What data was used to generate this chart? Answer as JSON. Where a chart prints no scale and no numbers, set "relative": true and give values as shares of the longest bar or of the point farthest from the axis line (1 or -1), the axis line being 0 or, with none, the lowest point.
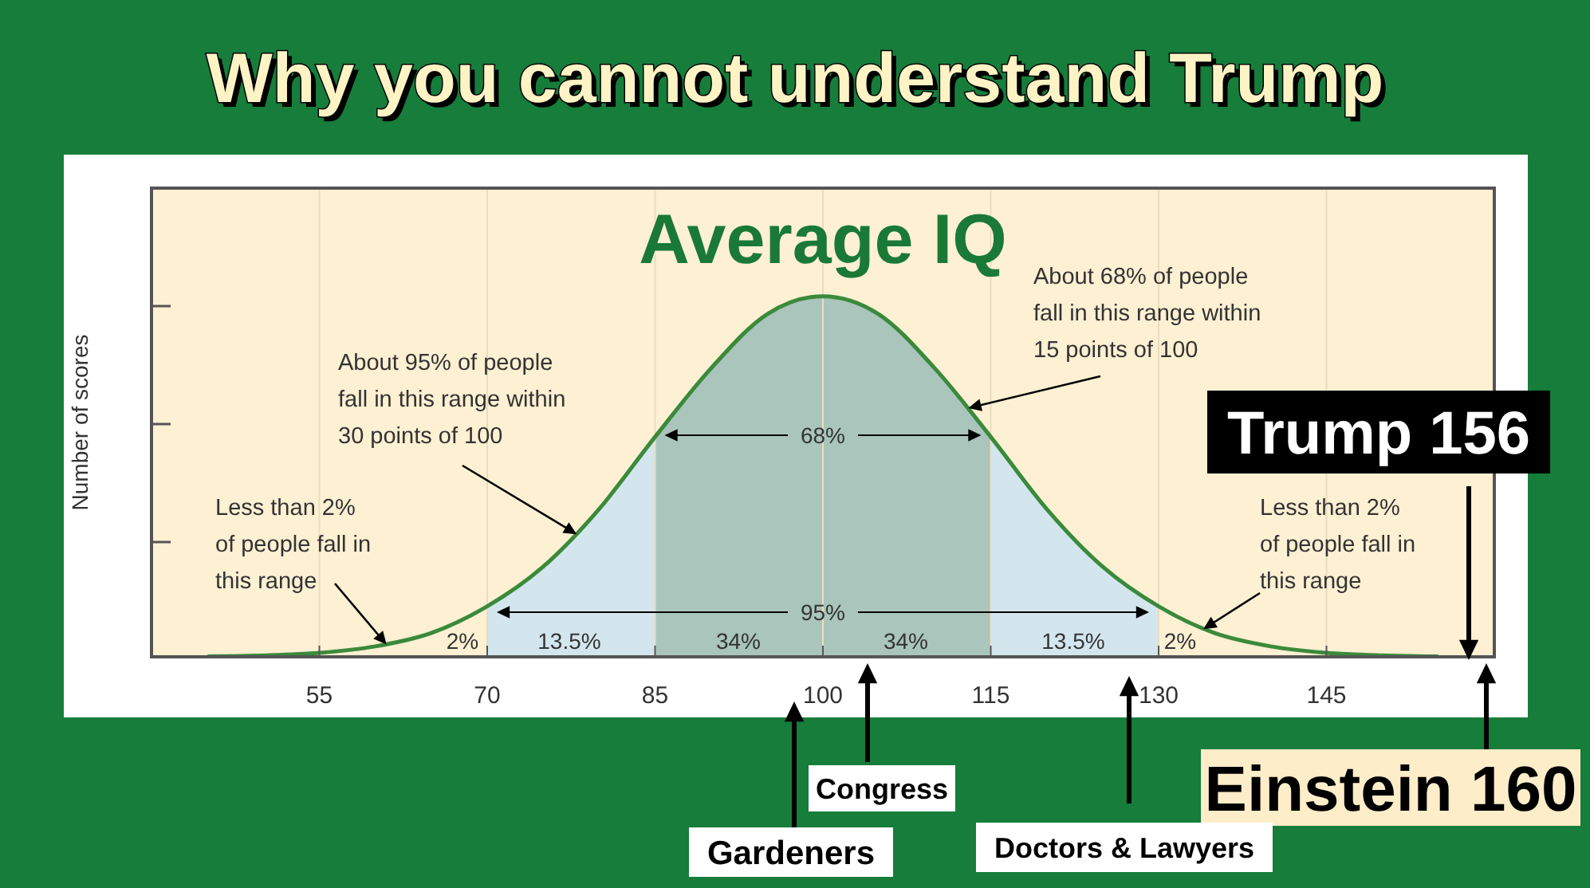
{
  "chart_data": {
    "type": "line",
    "title": "Why you cannot understand Trump",
    "ylabel": "Number of scores",
    "relative": true,
    "x": [
      45,
      50,
      55,
      60,
      65,
      70,
      75,
      80,
      85,
      90,
      95,
      100,
      105,
      110,
      115,
      120,
      125,
      130,
      135,
      140,
      145,
      150,
      155
    ],
    "series": [
      {
        "color": "#3b8a3c",
        "values": [
          0.0012,
          0.0039,
          0.011,
          0.029,
          0.066,
          0.14,
          0.25,
          0.41,
          0.61,
          0.8,
          0.95,
          1,
          0.95,
          0.8,
          0.61,
          0.41,
          0.25,
          0.14,
          0.066,
          0.029,
          0.011,
          0.0039,
          0.0012
        ]
      }
    ],
    "xlim": [
      40,
      160
    ],
    "xticks": [
      55,
      70,
      85,
      100,
      115,
      130,
      145
    ],
    "grid": "x",
    "bands": [
      {
        "axis": "x",
        "from": 70,
        "to": 130,
        "label": "95%",
        "color": "#d3e6ee"
      },
      {
        "axis": "x",
        "from": 85,
        "to": 115,
        "label": "68%",
        "color": "#a9c5bc"
      }
    ],
    "annotations": [
      {
        "text": "Average IQ",
        "x": 100,
        "y": 1
      },
      {
        "text": "About 95% of people fall in this range within 30 points of 100",
        "x": 78,
        "y": 0.34
      },
      {
        "text": "About 68% of people fall in this range within 15 points of 100",
        "x": 113,
        "y": 0.69
      },
      {
        "text": "Less than 2% of people fall in this range",
        "x": 61,
        "y": 0.034
      },
      {
        "text": "Less than 2% of people fall in this range",
        "x": 134,
        "y": 0.077
      },
      "2%",
      "13.5%",
      "34%",
      "34%",
      "13.5%",
      "2%",
      "Trump 156",
      "Einstein 160",
      "Gardeners",
      "Congress",
      "Doctors & Lawyers"
    ]
  }
}
